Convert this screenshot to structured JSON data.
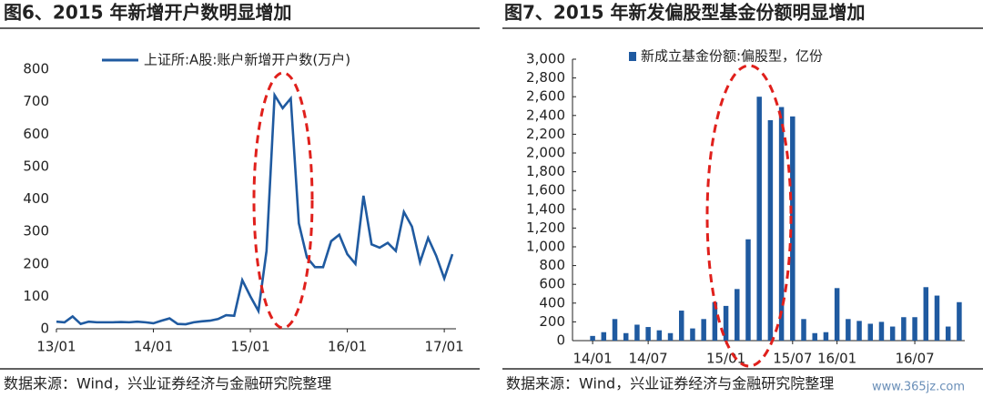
{
  "chart_data": [
    {
      "type": "line",
      "title": "图6、2015 年新增开户数明显增加",
      "source": "数据来源：Wind，兴业证券经济与金融研究院整理",
      "categories": [
        "13/01",
        null,
        null,
        null,
        null,
        null,
        null,
        null,
        null,
        null,
        null,
        null,
        "14/01",
        null,
        null,
        null,
        null,
        null,
        null,
        null,
        null,
        null,
        null,
        null,
        "15/01",
        null,
        null,
        null,
        null,
        null,
        null,
        null,
        null,
        null,
        null,
        null,
        "16/01",
        null,
        null,
        null,
        null,
        null,
        null,
        null,
        null,
        null,
        null,
        null,
        "17/01",
        null
      ],
      "series": [
        {
          "name": "上证所:A股:账户新增开户数(万户)",
          "color": "#1f5aa0",
          "values": [
            22,
            20,
            38,
            15,
            22,
            20,
            20,
            20,
            21,
            20,
            22,
            20,
            17,
            25,
            32,
            15,
            14,
            20,
            23,
            25,
            30,
            42,
            40,
            150,
            100,
            55,
            240,
            720,
            680,
            710,
            325,
            220,
            190,
            190,
            270,
            290,
            230,
            200,
            410,
            260,
            250,
            265,
            240,
            360,
            315,
            205,
            280,
            225,
            155,
            230
          ]
        }
      ],
      "ylim": [
        0,
        800
      ],
      "yticks": [
        0,
        100,
        200,
        300,
        400,
        500,
        600,
        700,
        800
      ]
    },
    {
      "type": "bar",
      "title": "图7、2015 年新发偏股型基金份额明显增加",
      "source": "数据来源：Wind，兴业证券经济与金融研究院整理",
      "watermark": "www.365jz.com",
      "categories": [
        "14/01",
        null,
        null,
        null,
        null,
        "14/07",
        null,
        null,
        null,
        null,
        null,
        null,
        "15/01",
        null,
        null,
        null,
        null,
        null,
        "15/07",
        null,
        null,
        null,
        "16/01",
        null,
        null,
        null,
        null,
        null,
        null,
        "16/07",
        null,
        null,
        null,
        null
      ],
      "series": [
        {
          "name": "新成立基金份额:偏股型，亿份",
          "color": "#1f5aa0",
          "values": [
            50,
            90,
            230,
            80,
            170,
            145,
            110,
            80,
            320,
            130,
            230,
            410,
            370,
            550,
            1080,
            2600,
            2350,
            2490,
            2390,
            230,
            80,
            90,
            560,
            230,
            210,
            180,
            200,
            150,
            250,
            250,
            570,
            480,
            150,
            410
          ]
        }
      ],
      "ylim": [
        0,
        3000
      ],
      "yticks": [
        0,
        200,
        400,
        600,
        800,
        {
          "value": 1000,
          "label": "1,000"
        },
        {
          "value": 1200,
          "label": "1,200"
        },
        {
          "value": 1400,
          "label": "1,400"
        },
        {
          "value": 1600,
          "label": "1,600"
        },
        {
          "value": 1800,
          "label": "1,800"
        },
        {
          "value": 2000,
          "label": "2,000"
        },
        {
          "value": 2200,
          "label": "2,200"
        },
        {
          "value": 2400,
          "label": "2,400"
        },
        {
          "value": 2600,
          "label": "2,600"
        },
        {
          "value": 2800,
          "label": "2,800"
        },
        {
          "value": 3000,
          "label": "3,000"
        }
      ]
    }
  ]
}
